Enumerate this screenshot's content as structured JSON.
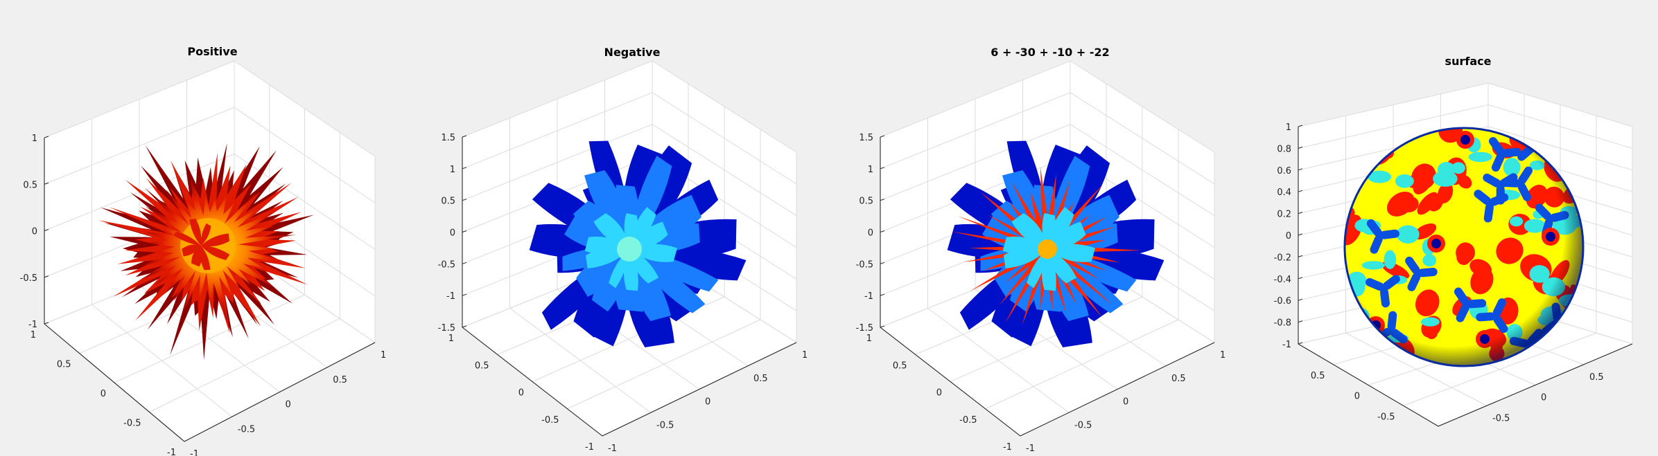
{
  "chart_data": [
    {
      "type": "surface3d",
      "title": "Positive",
      "colormap": "hot",
      "colors": {
        "dark": "#8b0000",
        "mid": "#e01a00",
        "light": "#ffb300"
      },
      "xticks": [
        "-1",
        "-0.5",
        "0",
        "0.5",
        "1"
      ],
      "yticks": [
        "-1",
        "-0.5",
        "0",
        "0.5",
        "1"
      ],
      "zticks": [
        "-1",
        "-0.5",
        "0",
        "0.5",
        "1"
      ],
      "xlim": [
        -1,
        1
      ],
      "ylim": [
        -1,
        1
      ],
      "zlim": [
        -1,
        1
      ],
      "grid": true
    },
    {
      "type": "surface3d",
      "title": "Negative",
      "colormap": "jet",
      "colors": {
        "dark": "#0010c8",
        "mid": "#1a7cff",
        "light": "#7ff7e0"
      },
      "xticks": [
        "-1",
        "-0.5",
        "0",
        "0.5",
        "1"
      ],
      "yticks": [
        "-1",
        "-0.5",
        "0",
        "0.5",
        "1"
      ],
      "zticks": [
        "-1.5",
        "-1",
        "-0.5",
        "0",
        "0.5",
        "1",
        "1.5"
      ],
      "xlim": [
        -1,
        1
      ],
      "ylim": [
        -1,
        1
      ],
      "zlim": [
        -1.5,
        1.5
      ],
      "grid": true
    },
    {
      "type": "surface3d",
      "title": "6 + -30 + -10 + -22",
      "colormap": "jet",
      "colors": {
        "dark": "#0010c8",
        "mid": "#1a7cff",
        "light": "#7ff7e0",
        "accent": "#ff2a00"
      },
      "xticks": [
        "-1",
        "-0.5",
        "0",
        "0.5",
        "1"
      ],
      "yticks": [
        "-1",
        "-0.5",
        "0",
        "0.5",
        "1"
      ],
      "zticks": [
        "-1.5",
        "-1",
        "-0.5",
        "0",
        "0.5",
        "1",
        "1.5"
      ],
      "xlim": [
        -1,
        1
      ],
      "ylim": [
        -1,
        1
      ],
      "zlim": [
        -1.5,
        1.5
      ],
      "grid": true
    },
    {
      "type": "surface3d",
      "title": "surface",
      "colormap": "jet",
      "colors": {
        "base": "#ffff00",
        "red": "#ff1a00",
        "cyan": "#36e7e0",
        "blue": "#0a4fe0",
        "dark": "#000099"
      },
      "xticks": [
        "-0.5",
        "0",
        "0.5"
      ],
      "yticks": [
        "-0.5",
        "0",
        "0.5"
      ],
      "zticks": [
        "-1",
        "-0.8",
        "-0.6",
        "-0.4",
        "-0.2",
        "0",
        "0.2",
        "0.4",
        "0.6",
        "0.8",
        "1"
      ],
      "xlim": [
        -1,
        1
      ],
      "ylim": [
        -1,
        1
      ],
      "zlim": [
        -1,
        1
      ],
      "grid": true
    }
  ]
}
